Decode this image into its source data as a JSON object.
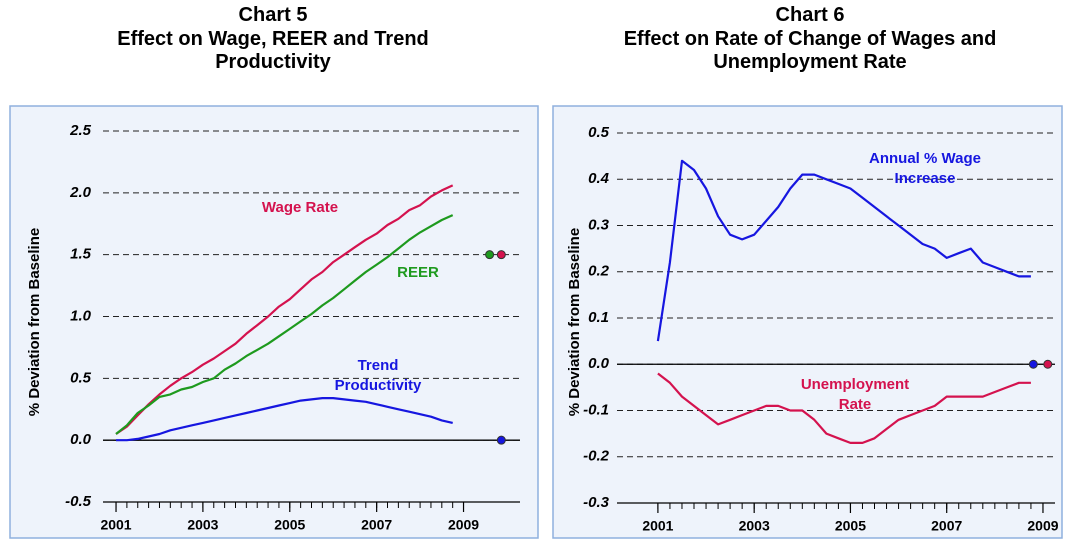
{
  "chart_data": [
    {
      "type": "line",
      "title": "Chart 5",
      "subtitle": "Effect on Wage, REER and Trend Productivity",
      "ylabel": "% Deviation from Baseline",
      "x": [
        2001,
        2001.25,
        2001.5,
        2001.75,
        2002,
        2002.25,
        2002.5,
        2002.75,
        2003,
        2003.25,
        2003.5,
        2003.75,
        2004,
        2004.25,
        2004.5,
        2004.75,
        2005,
        2005.25,
        2005.5,
        2005.75,
        2006,
        2006.25,
        2006.5,
        2006.75,
        2007,
        2007.25,
        2007.5,
        2007.75,
        2008,
        2008.25,
        2008.5,
        2008.75
      ],
      "xlim": [
        2000.7,
        2010.3
      ],
      "xticks": [
        2001,
        2003,
        2005,
        2007,
        2009
      ],
      "ylim": [
        -0.5,
        2.5
      ],
      "yticks": [
        2.5,
        {
          "value": 2,
          "label": "2.0"
        },
        1.5,
        {
          "value": 1,
          "label": "1.0"
        },
        0.5,
        {
          "value": 0,
          "label": "0.0"
        },
        -0.5
      ],
      "grid": true,
      "series": [
        {
          "name": "Wage Rate",
          "color": "#d4124e",
          "end_x": 2009.87,
          "end_value": 1.5,
          "values": [
            0.05,
            0.11,
            0.2,
            0.29,
            0.37,
            0.44,
            0.5,
            0.55,
            0.61,
            0.66,
            0.72,
            0.78,
            0.86,
            0.93,
            1.0,
            1.08,
            1.14,
            1.22,
            1.3,
            1.36,
            1.44,
            1.5,
            1.56,
            1.62,
            1.67,
            1.74,
            1.79,
            1.86,
            1.9,
            1.97,
            2.02,
            2.06
          ]
        },
        {
          "name": "REER",
          "color": "#1e9a1e",
          "end_x": 2009.6,
          "end_value": 1.5,
          "values": [
            0.05,
            0.12,
            0.22,
            0.28,
            0.35,
            0.37,
            0.41,
            0.43,
            0.47,
            0.5,
            0.57,
            0.62,
            0.68,
            0.73,
            0.78,
            0.84,
            0.9,
            0.96,
            1.02,
            1.09,
            1.15,
            1.22,
            1.29,
            1.36,
            1.42,
            1.48,
            1.55,
            1.62,
            1.68,
            1.73,
            1.78,
            1.82
          ]
        },
        {
          "name": "Trend Productivity",
          "color": "#1616e0",
          "end_x": 2009.87,
          "end_value": 0,
          "values": [
            0,
            0,
            0.01,
            0.03,
            0.05,
            0.08,
            0.1,
            0.12,
            0.14,
            0.16,
            0.18,
            0.2,
            0.22,
            0.24,
            0.26,
            0.28,
            0.3,
            0.32,
            0.33,
            0.34,
            0.34,
            0.33,
            0.32,
            0.31,
            0.29,
            0.27,
            0.25,
            0.23,
            0.21,
            0.19,
            0.16,
            0.14
          ]
        }
      ]
    },
    {
      "type": "line",
      "title": "Chart 6",
      "subtitle": "Effect on Rate of Change of Wages and Unemployment Rate",
      "ylabel": "% Deviation from Baseline",
      "x": [
        2001,
        2001.25,
        2001.5,
        2001.75,
        2002,
        2002.25,
        2002.5,
        2002.75,
        2003,
        2003.25,
        2003.5,
        2003.75,
        2004,
        2004.25,
        2004.5,
        2004.75,
        2005,
        2005.25,
        2005.5,
        2005.75,
        2006,
        2006.25,
        2006.5,
        2006.75,
        2007,
        2007.25,
        2007.5,
        2007.75,
        2008,
        2008.25,
        2008.5,
        2008.75
      ],
      "xlim": [
        2000.15,
        2009.25
      ],
      "xticks": [
        2001,
        2003,
        2005,
        2007,
        2009
      ],
      "ylim": [
        -0.3,
        0.5
      ],
      "yticks": [
        0.5,
        0.4,
        0.3,
        0.2,
        0.1,
        {
          "value": 0,
          "label": "0.0"
        },
        -0.1,
        -0.2,
        -0.3
      ],
      "grid": true,
      "series": [
        {
          "name": "Annual % Wage Increase",
          "color": "#1616e0",
          "end_x": 2008.8,
          "end_value": 0,
          "values": [
            0.05,
            0.22,
            0.44,
            0.42,
            0.38,
            0.32,
            0.28,
            0.27,
            0.28,
            0.31,
            0.34,
            0.38,
            0.41,
            0.41,
            0.4,
            0.39,
            0.38,
            0.36,
            0.34,
            0.32,
            0.3,
            0.28,
            0.26,
            0.25,
            0.23,
            0.24,
            0.25,
            0.22,
            0.21,
            0.2,
            0.19,
            0.19
          ]
        },
        {
          "name": "Unemployment Rate",
          "color": "#d4124e",
          "end_x": 2009.1,
          "end_value": 0,
          "values": [
            -0.02,
            -0.04,
            -0.07,
            -0.09,
            -0.11,
            -0.13,
            -0.12,
            -0.11,
            -0.1,
            -0.09,
            -0.09,
            -0.1,
            -0.1,
            -0.12,
            -0.15,
            -0.16,
            -0.17,
            -0.17,
            -0.16,
            -0.14,
            -0.12,
            -0.11,
            -0.1,
            -0.09,
            -0.07,
            -0.07,
            -0.07,
            -0.07,
            -0.06,
            -0.05,
            -0.04,
            -0.04
          ]
        }
      ]
    }
  ]
}
